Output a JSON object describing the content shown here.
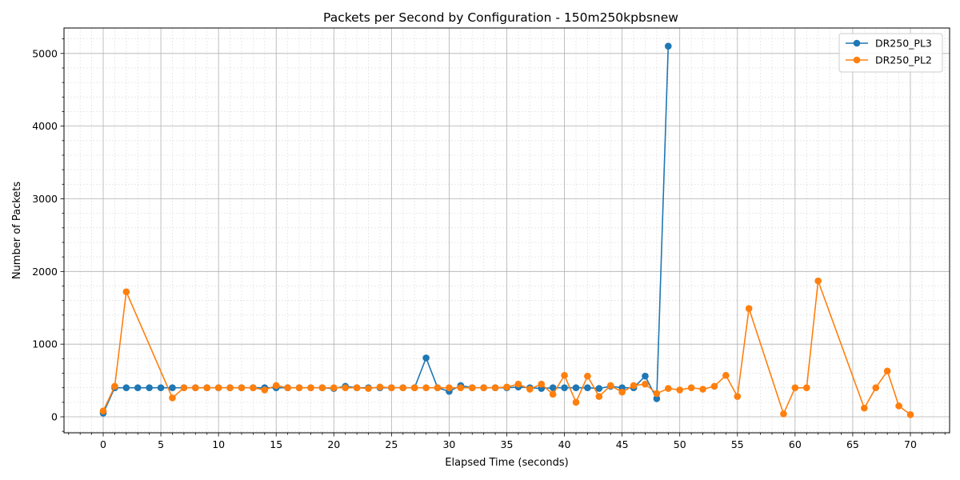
{
  "chart_data": {
    "type": "line",
    "title": "Packets per Second by Configuration - 150m250kpbsnew",
    "xlabel": "Elapsed Time (seconds)",
    "ylabel": "Number of Packets",
    "xlim": [
      -3.4,
      73.4
    ],
    "ylim": [
      -220,
      5350
    ],
    "x_ticks": [
      0,
      5,
      10,
      15,
      20,
      25,
      30,
      35,
      40,
      45,
      50,
      55,
      60,
      65,
      70
    ],
    "y_ticks": [
      0,
      1000,
      2000,
      3000,
      4000,
      5000
    ],
    "grid": true,
    "minor_grid": true,
    "legend_position": "top-right",
    "series": [
      {
        "name": "DR250_PL3",
        "color": "#1f77b4",
        "points": [
          [
            0,
            50
          ],
          [
            1,
            400
          ],
          [
            2,
            400
          ],
          [
            3,
            400
          ],
          [
            4,
            400
          ],
          [
            5,
            400
          ],
          [
            6,
            400
          ],
          [
            7,
            400
          ],
          [
            8,
            400
          ],
          [
            9,
            400
          ],
          [
            10,
            400
          ],
          [
            11,
            400
          ],
          [
            12,
            400
          ],
          [
            13,
            400
          ],
          [
            14,
            400
          ],
          [
            15,
            400
          ],
          [
            16,
            400
          ],
          [
            17,
            400
          ],
          [
            18,
            400
          ],
          [
            19,
            400
          ],
          [
            20,
            390
          ],
          [
            21,
            420
          ],
          [
            22,
            400
          ],
          [
            23,
            400
          ],
          [
            24,
            400
          ],
          [
            25,
            400
          ],
          [
            26,
            400
          ],
          [
            27,
            400
          ],
          [
            28,
            810
          ],
          [
            29,
            400
          ],
          [
            30,
            350
          ],
          [
            31,
            430
          ],
          [
            32,
            400
          ],
          [
            33,
            400
          ],
          [
            34,
            400
          ],
          [
            35,
            400
          ],
          [
            36,
            410
          ],
          [
            37,
            400
          ],
          [
            38,
            390
          ],
          [
            39,
            400
          ],
          [
            40,
            400
          ],
          [
            41,
            400
          ],
          [
            42,
            400
          ],
          [
            43,
            390
          ],
          [
            44,
            420
          ],
          [
            45,
            400
          ],
          [
            46,
            400
          ],
          [
            47,
            560
          ],
          [
            48,
            250
          ],
          [
            49,
            5100
          ]
        ]
      },
      {
        "name": "DR250_PL2",
        "color": "#ff7f0e",
        "points": [
          [
            0,
            80
          ],
          [
            1,
            420
          ],
          [
            2,
            1720
          ],
          [
            6,
            260
          ],
          [
            7,
            400
          ],
          [
            8,
            400
          ],
          [
            9,
            400
          ],
          [
            10,
            400
          ],
          [
            11,
            400
          ],
          [
            12,
            400
          ],
          [
            13,
            400
          ],
          [
            14,
            370
          ],
          [
            15,
            430
          ],
          [
            16,
            400
          ],
          [
            17,
            400
          ],
          [
            18,
            400
          ],
          [
            19,
            400
          ],
          [
            20,
            400
          ],
          [
            21,
            400
          ],
          [
            22,
            400
          ],
          [
            23,
            390
          ],
          [
            24,
            410
          ],
          [
            25,
            400
          ],
          [
            26,
            400
          ],
          [
            27,
            400
          ],
          [
            28,
            400
          ],
          [
            29,
            400
          ],
          [
            30,
            400
          ],
          [
            31,
            400
          ],
          [
            32,
            400
          ],
          [
            33,
            400
          ],
          [
            34,
            400
          ],
          [
            35,
            410
          ],
          [
            36,
            450
          ],
          [
            37,
            380
          ],
          [
            38,
            450
          ],
          [
            39,
            310
          ],
          [
            40,
            570
          ],
          [
            41,
            200
          ],
          [
            42,
            560
          ],
          [
            43,
            280
          ],
          [
            44,
            430
          ],
          [
            45,
            340
          ],
          [
            46,
            430
          ],
          [
            47,
            450
          ],
          [
            48,
            320
          ],
          [
            49,
            390
          ],
          [
            50,
            370
          ],
          [
            51,
            400
          ],
          [
            52,
            380
          ],
          [
            53,
            420
          ],
          [
            54,
            570
          ],
          [
            55,
            280
          ],
          [
            56,
            1490
          ],
          [
            59,
            40
          ],
          [
            60,
            400
          ],
          [
            61,
            400
          ],
          [
            62,
            1870
          ],
          [
            66,
            120
          ],
          [
            67,
            400
          ],
          [
            68,
            630
          ],
          [
            69,
            150
          ],
          [
            70,
            30
          ]
        ]
      }
    ]
  }
}
